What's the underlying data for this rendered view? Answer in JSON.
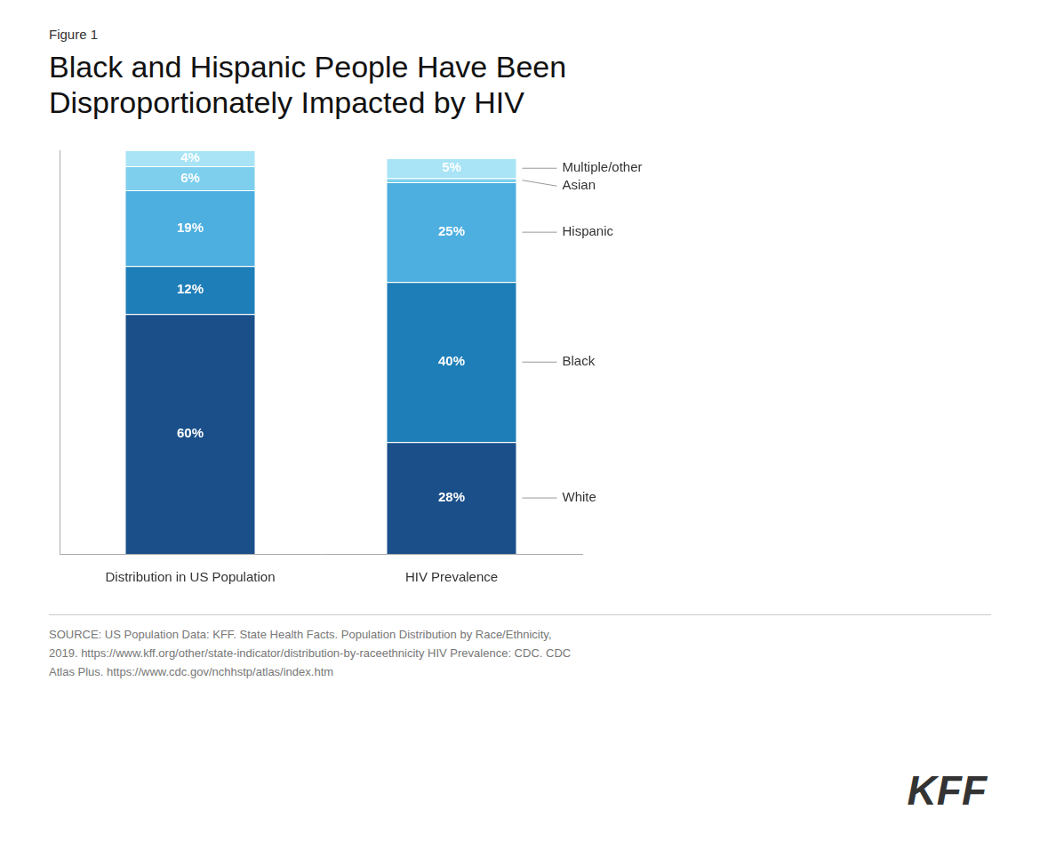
{
  "chart_data": {
    "type": "bar",
    "subtitle": "Figure 1",
    "title": "Black and Hispanic People Have Been\nDisproportionately Impacted by HIV",
    "categories": [
      "Distribution in US Population",
      "HIV Prevalence"
    ],
    "series": [
      {
        "name": "White",
        "color": "#1a4f8a",
        "values": [
          60,
          28
        ],
        "value_labels": [
          "60%",
          "28%"
        ]
      },
      {
        "name": "Black",
        "color": "#1e7eb8",
        "values": [
          12,
          40
        ],
        "value_labels": [
          "12%",
          "40%"
        ]
      },
      {
        "name": "Hispanic",
        "color": "#4daee0",
        "values": [
          19,
          25
        ],
        "value_labels": [
          "19%",
          "25%"
        ]
      },
      {
        "name": "Asian",
        "color": "#7dcfed",
        "values": [
          6,
          1
        ],
        "value_labels": [
          "6%",
          null
        ]
      },
      {
        "name": "Multiple/other",
        "color": "#a8e4f5",
        "values": [
          4,
          5
        ],
        "value_labels": [
          "4%",
          "5%"
        ]
      }
    ],
    "stacked": true,
    "data_labels": true,
    "ylim": [
      0,
      101
    ],
    "tick_labels": "x",
    "grid": false,
    "legend": "none",
    "annotations": [
      "SOURCE: US Population Data: KFF. State Health Facts. Population Distribution by Race/Ethnicity,\n2019. https://www.kff.org/other/state-indicator/distribution-by-raceethnicity HIV Prevalence: CDC. CDC\nAtlas Plus. https://www.cdc.gov/nchhstp/atlas/index.htm",
      "KFF"
    ]
  }
}
